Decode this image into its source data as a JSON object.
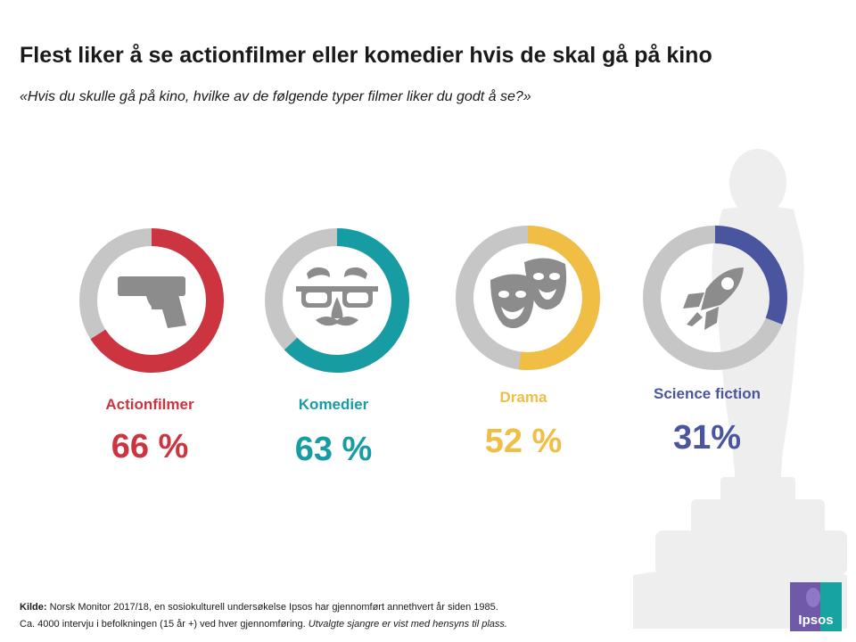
{
  "title": "Flest liker å se actionfilmer eller komedier hvis de skal gå på kino",
  "subtitle": "«Hvis du skulle gå på kino, hvilke av de følgende typer filmer liker du godt å se?»",
  "chart_data": {
    "type": "donut",
    "series": [
      {
        "name": "Actionfilmer",
        "value": 66,
        "display": "66 %",
        "color": "#cc3440",
        "icon": "pistol-icon"
      },
      {
        "name": "Komedier",
        "value": 63,
        "display": "63 %",
        "color": "#189ca3",
        "icon": "glasses-disguise-icon"
      },
      {
        "name": "Drama",
        "value": 52,
        "display": "52 %",
        "color": "#f0be45",
        "icon": "theater-masks-icon"
      },
      {
        "name": "Science fiction",
        "value": 31,
        "display": "31%",
        "color": "#4a55a0",
        "icon": "rocket-icon"
      }
    ],
    "remainder_color": "#c6c6c6"
  },
  "footer": {
    "source_label": "Kilde:",
    "source_text": "Norsk Monitor 2017/18, en sosiokulturell undersøkelse Ipsos har gjennomført annethvert  år siden 1985.",
    "line2_text": "Ca. 4000 intervju i befolkningen (15 år +) ved hver gjennomføring.",
    "line2_note": "Utvalgte sjangre er vist med hensyns til plass."
  },
  "logo": {
    "text": "Ipsos"
  }
}
